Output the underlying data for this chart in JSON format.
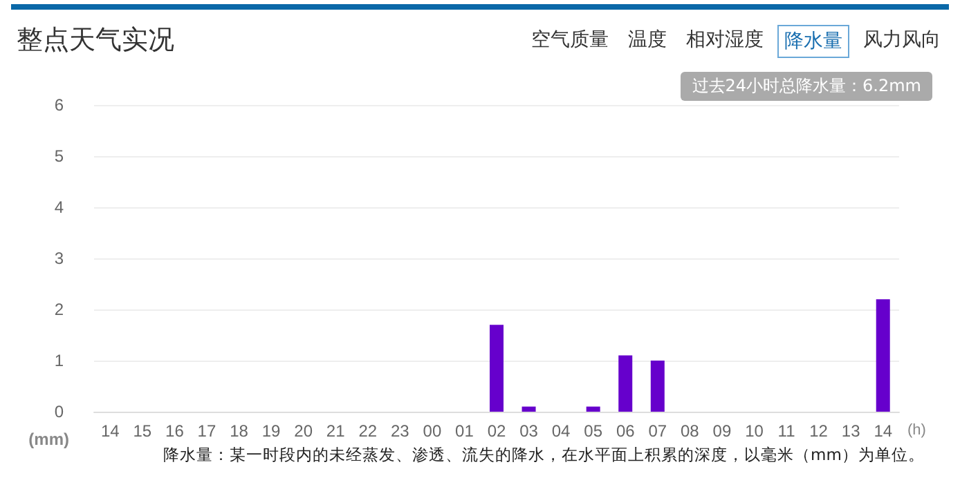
{
  "chart_data": {
    "type": "bar",
    "title": "整点天气实况",
    "categories": [
      "14",
      "15",
      "16",
      "17",
      "18",
      "19",
      "20",
      "21",
      "22",
      "23",
      "00",
      "01",
      "02",
      "03",
      "04",
      "05",
      "06",
      "07",
      "08",
      "09",
      "10",
      "11",
      "12",
      "13",
      "14"
    ],
    "values": [
      0,
      0,
      0,
      0,
      0,
      0,
      0,
      0,
      0,
      0,
      0,
      0,
      1.7,
      0.1,
      0,
      0.1,
      1.1,
      1.0,
      0,
      0,
      0,
      0,
      0,
      0,
      2.2
    ],
    "color": "#6600cc",
    "ylim": [
      0,
      6
    ],
    "yticks": [
      0,
      1,
      2,
      3,
      4,
      5,
      6
    ],
    "grid": "y",
    "xlabel": "(h)",
    "ylabel": "(mm)",
    "annotations": [
      "空气质量",
      "温度",
      "相对湿度",
      "降水量",
      "风力风向",
      "过去24小时总降水量：6.2mm",
      "降水量：某一时段内的未经蒸发、渗透、流失的降水，在水平面上积累的深度，以毫米（mm）为单位。"
    ]
  }
}
